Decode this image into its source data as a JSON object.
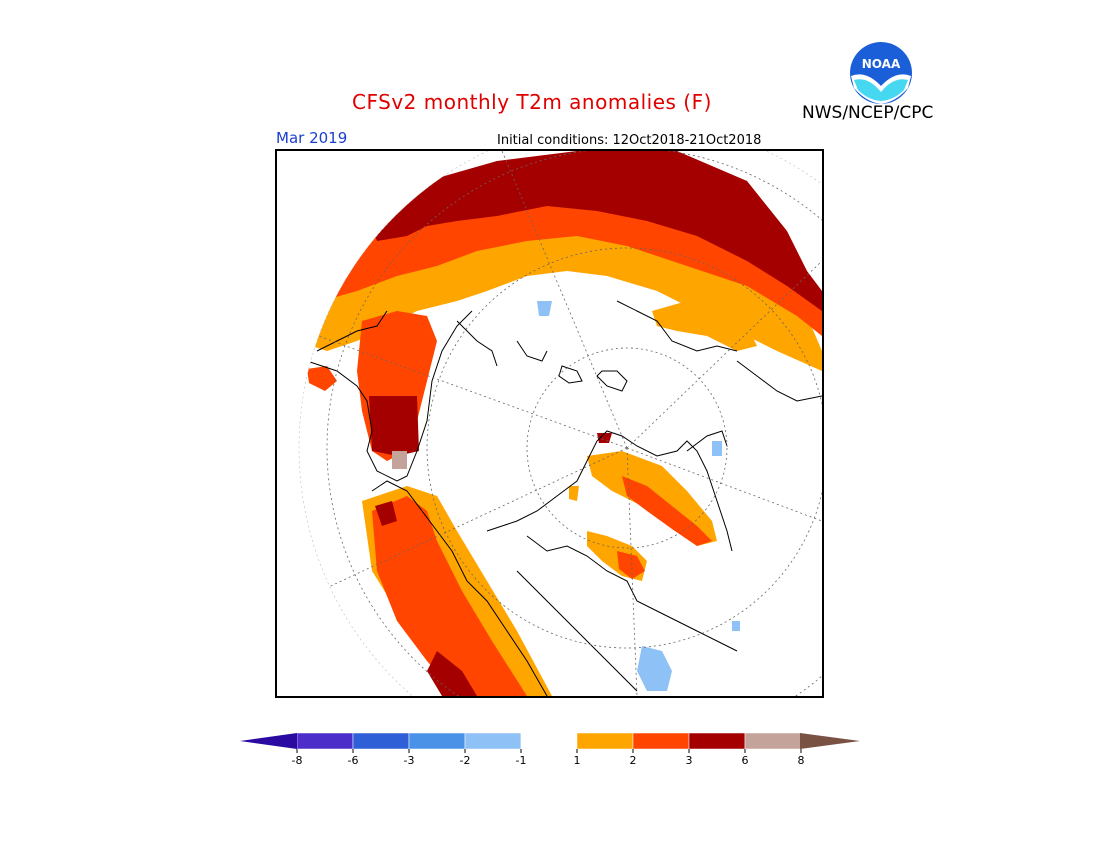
{
  "header": {
    "title": "CFSv2 monthly T2m anomalies (F)",
    "agency": "NWS/NCEP/CPC",
    "logo_text": "NOAA",
    "valid_month": "Mar 2019",
    "initial_conditions": "Initial conditions: 12Oct2018-21Oct2018"
  },
  "colors": {
    "title": "#e00000",
    "date": "#1a3fd0",
    "logo_blue": "#1a5fd8",
    "logo_cyan": "#45d8f0"
  },
  "legend": {
    "bins": [
      {
        "color": "#4d2dc9"
      },
      {
        "color": "#2f5fd6"
      },
      {
        "color": "#4a91e8"
      },
      {
        "color": "#8ec1f5"
      },
      {
        "color": "#ffffff"
      },
      {
        "color": "#ffa500"
      },
      {
        "color": "#ff4500"
      },
      {
        "color": "#a50000"
      },
      {
        "color": "#c4a49a"
      }
    ],
    "low_arrow_color": "#2a0aa0",
    "high_arrow_color": "#7a5244",
    "ticks": [
      "-8",
      "-6",
      "-3",
      "-2",
      "-1",
      "1",
      "2",
      "3",
      "6",
      "8"
    ]
  }
}
